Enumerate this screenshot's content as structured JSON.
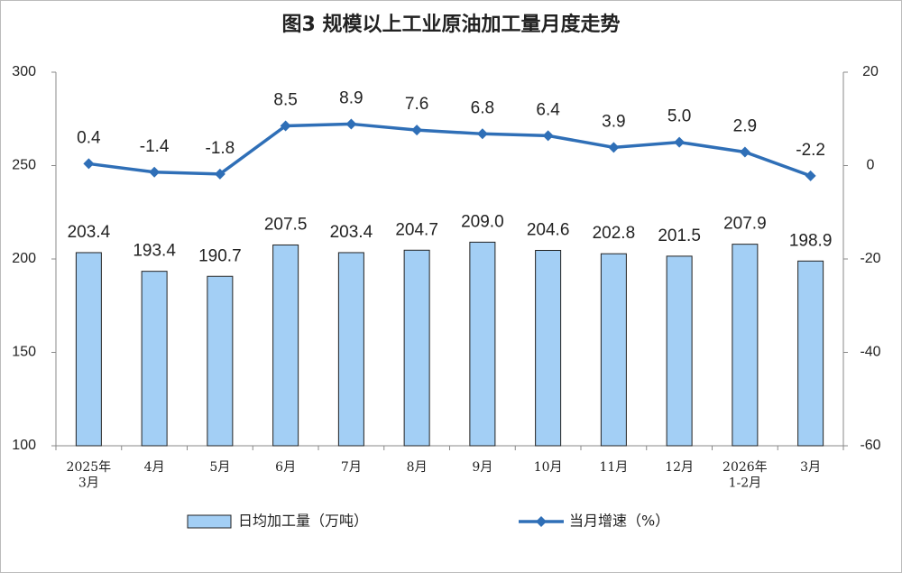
{
  "chart_data": {
    "type": "bar",
    "title": "图3  规模以上工业原油加工量月度走势",
    "categories": [
      "2025年\n3月",
      "4月",
      "5月",
      "6月",
      "7月",
      "8月",
      "9月",
      "10月",
      "11月",
      "12月",
      "2026年\n1-2月",
      "3月"
    ],
    "series": [
      {
        "name": "日均加工量（万吨）",
        "type": "bar",
        "color": "#a3cff5",
        "values": [
          203.4,
          193.4,
          190.7,
          207.5,
          203.4,
          204.7,
          209,
          204.6,
          202.8,
          201.5,
          207.9,
          198.9
        ],
        "value_labels": [
          "203.4",
          "193.4",
          "190.7",
          "207.5",
          "203.4",
          "204.7",
          "209.0",
          "204.6",
          "202.8",
          "201.5",
          "207.9",
          "198.9"
        ]
      },
      {
        "name": "当月增速（%）",
        "type": "line",
        "axis": "y2",
        "color": "#2f6fb7",
        "values": [
          0.4,
          -1.4,
          -1.8,
          8.5,
          8.9,
          7.6,
          6.8,
          6.4,
          3.9,
          5,
          2.9,
          -2.2
        ],
        "value_labels": [
          "0.4",
          "-1.4",
          "-1.8",
          "8.5",
          "8.9",
          "7.6",
          "6.8",
          "6.4",
          "3.9",
          "5.0",
          "2.9",
          "-2.2"
        ]
      }
    ],
    "ylim": [
      100,
      300
    ],
    "yticks": [
      100,
      150,
      200,
      250,
      300
    ],
    "y2lim": [
      -60,
      20
    ],
    "y2ticks": [
      -60,
      -40,
      -20,
      0,
      20
    ],
    "legend": "bottom"
  }
}
